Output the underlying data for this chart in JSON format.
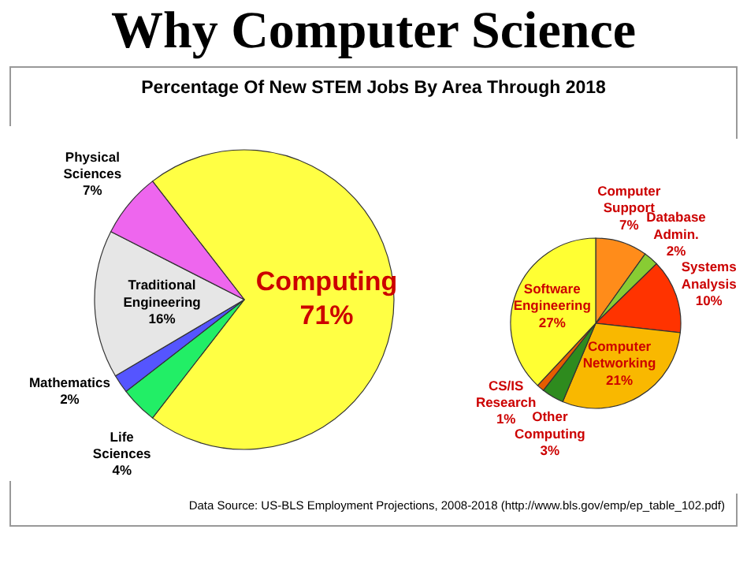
{
  "chart_data": [
    {
      "type": "pie",
      "title": "Why Computer Science",
      "subtitle": "Percentage Of New STEM Jobs By Area Through 2018",
      "categories": [
        "Computing",
        "Life Sciences",
        "Mathematics",
        "Traditional Engineering",
        "Physical Sciences"
      ],
      "values": [
        71,
        4,
        2,
        16,
        7
      ],
      "colors": [
        "#ffff44",
        "#22ee66",
        "#5555ff",
        "#e6e6e6",
        "#ee66ee"
      ],
      "value_labels": [
        "71%",
        "4%",
        "2%",
        "16%",
        "7%"
      ],
      "annotations": [
        "Data Source: US-BLS Employment Projections, 2008-2018 (http://www.bls.gov/emp/ep_table_102.pdf)"
      ]
    },
    {
      "type": "pie",
      "categories": [
        "Computer Support",
        "Database Admin.",
        "Systems Analysis",
        "Computer Networking",
        "Other Computing",
        "CS/IS Research",
        "Software Engineering"
      ],
      "values": [
        7,
        2,
        10,
        21,
        3,
        1,
        27
      ],
      "colors": [
        "#ff8c1a",
        "#88cc33",
        "#ff3300",
        "#f9b800",
        "#2e8b1e",
        "#e65c00",
        "#ffff33"
      ],
      "value_labels": [
        "7%",
        "2%",
        "10%",
        "21%",
        "3%",
        "1%",
        "27%"
      ]
    }
  ]
}
